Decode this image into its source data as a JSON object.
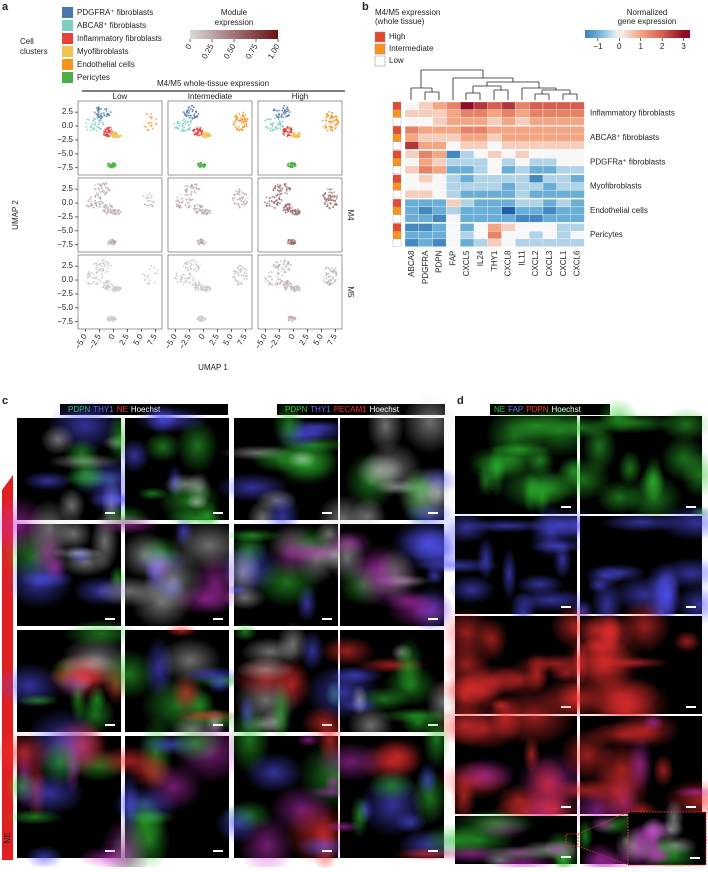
{
  "panel_labels": [
    "a",
    "b",
    "c",
    "d"
  ],
  "panel_a": {
    "cell_clusters_title": [
      "Cell",
      "clusters"
    ],
    "clusters": [
      {
        "name": "PDGFRA⁺ fibroblasts",
        "color": "#4a78b0"
      },
      {
        "name": "ABCA8⁺ fibroblasts",
        "color": "#7fcdc4"
      },
      {
        "name": "Inflammatory fibroblasts",
        "color": "#e8413c"
      },
      {
        "name": "Myofibroblasts",
        "color": "#f2c14e"
      },
      {
        "name": "Endothelial cells",
        "color": "#f7941d"
      },
      {
        "name": "Pericytes",
        "color": "#4daf4a"
      }
    ],
    "module_title": [
      "Module",
      "expression"
    ],
    "module_lim": [
      0,
      1
    ],
    "module_ticks": [
      0,
      {
        "value": 0.25,
        "label": "0.25"
      },
      {
        "value": 0.5,
        "label": "0.50"
      },
      {
        "value": 0.75,
        "label": "0.75"
      },
      {
        "value": 1,
        "label": "1.00"
      }
    ],
    "module_colors": [
      "#d9d9d9",
      "#6b1010"
    ],
    "header": "M4/M5 whole-tissue expression",
    "columns": [
      "Low",
      "Intermediate",
      "High"
    ],
    "rows": [
      "M4",
      "M5"
    ],
    "xlabel": "UMAP 1",
    "ylabel": "UMAP 2",
    "xlim": [
      -6.3,
      8.7
    ],
    "ylim": [
      -8.8,
      4.5
    ],
    "xticks": [
      {
        "value": -5,
        "label": "−5.0"
      },
      {
        "value": -2.5,
        "label": "−2.5"
      },
      0,
      2.5,
      {
        "value": 5,
        "label": "5.0"
      },
      7.5
    ],
    "yticks": [
      2.5,
      {
        "value": 0,
        "label": "0.0"
      },
      {
        "value": -2.5,
        "label": "−2.5"
      },
      {
        "value": -5,
        "label": "−5.0"
      },
      {
        "value": -7.5,
        "label": "−7.5"
      }
    ]
  },
  "panel_b": {
    "legend_title": [
      "M4/M5 expression",
      "(whole tissue)"
    ],
    "legend": [
      {
        "label": "High",
        "color": "#e34a33"
      },
      {
        "label": "Intermediate",
        "color": "#f7941d"
      },
      {
        "label": "Low",
        "color": "#ffffff"
      }
    ],
    "colorbar_title": [
      "Normalized",
      "gene expression"
    ],
    "colorbar_lim": [
      -1.6,
      3.3
    ],
    "colorbar_ticks": [
      {
        "value": -1,
        "label": "−1"
      },
      0,
      1,
      2,
      3
    ],
    "colorscale": [
      {
        "value": -2,
        "color": "#1f5fa8"
      },
      {
        "value": -1,
        "color": "#6aaed6"
      },
      {
        "value": 0,
        "color": "#f7f7f7"
      },
      {
        "value": 1,
        "color": "#f4a582"
      },
      {
        "value": 2,
        "color": "#d6604d"
      },
      {
        "value": 3,
        "color": "#8c0d25"
      }
    ],
    "genes": [
      "ABCA8",
      "PDGFRA",
      "PDPN",
      "FAP",
      "CXCL5",
      "IL24",
      "THY1",
      "CXCL8",
      "IL11",
      "CXCL2",
      "CXCL3",
      "CXCL1",
      "CXCL6"
    ],
    "groups": [
      {
        "name": "Inflammatory fibroblasts",
        "rows": [
          [
            0,
            0.5,
            1,
            1.5,
            3,
            2.5,
            2,
            2.5,
            1.5,
            2,
            2,
            2,
            2
          ],
          [
            0.5,
            0.5,
            0.5,
            1,
            1.5,
            1.5,
            1,
            1.5,
            1,
            1.5,
            1.5,
            1.5,
            1.5
          ],
          [
            0,
            0,
            0.5,
            1,
            1,
            1,
            0.5,
            1,
            0.5,
            1,
            1,
            1,
            1
          ]
        ]
      },
      {
        "name": "ABCA8⁺ fibroblasts",
        "rows": [
          [
            1.5,
            1,
            1,
            1,
            1.5,
            1.5,
            1,
            1,
            1,
            1,
            1,
            1,
            1
          ],
          [
            1,
            0.5,
            0.5,
            0.5,
            1,
            1,
            0.5,
            1,
            1,
            1,
            1,
            1,
            1
          ],
          [
            2.5,
            1,
            1,
            0,
            0.5,
            0.5,
            0,
            0.5,
            0.5,
            0.5,
            0.5,
            0.5,
            0.5
          ]
        ]
      },
      {
        "name": "PDGFRa⁺ fibroblasts",
        "rows": [
          [
            0.5,
            1.5,
            1,
            -1.5,
            -0.5,
            0,
            0.5,
            0,
            0.5,
            0,
            0,
            0,
            0
          ],
          [
            0,
            1,
            0.5,
            -0.5,
            -0.5,
            -0.5,
            0,
            -0.5,
            0,
            -0.5,
            -0.5,
            0,
            0
          ],
          [
            0.5,
            1.5,
            1,
            -1,
            -1,
            -0.5,
            0,
            -1,
            -0.5,
            -1,
            -1,
            -0.5,
            -0.5
          ]
        ]
      },
      {
        "name": "Myofibroblasts",
        "rows": [
          [
            0,
            0.5,
            0,
            -0.5,
            -1,
            -0.5,
            -0.5,
            -0.5,
            -0.5,
            -1.5,
            -0.5,
            -0.5,
            -1
          ],
          [
            0,
            0,
            0,
            -0.5,
            -0.5,
            -0.5,
            -0.5,
            -1,
            -0.5,
            -0.5,
            -1,
            -0.5,
            -0.5
          ],
          [
            0.5,
            0.5,
            0,
            -0.5,
            -1,
            -1,
            -1,
            -1,
            -0.5,
            -1,
            -1,
            -1,
            -1
          ]
        ]
      },
      {
        "name": "Endothelial cells",
        "rows": [
          [
            -1,
            -1,
            -1,
            0.5,
            -0.5,
            -1,
            -1,
            -1,
            -0.5,
            -0.5,
            -1,
            -0.5,
            -1
          ],
          [
            -1,
            -1.5,
            -1,
            -0.5,
            -1,
            -1,
            -1,
            -2,
            -1,
            -1,
            -1.5,
            -1,
            -1
          ],
          [
            -1,
            -1,
            -1.5,
            0,
            -1,
            -1,
            -1,
            -1,
            -1.5,
            -1.5,
            -1,
            -1,
            -1
          ]
        ]
      },
      {
        "name": "Pericytes",
        "rows": [
          [
            -1.5,
            -1.5,
            -1,
            0,
            -1,
            0,
            1,
            0.5,
            0,
            0,
            0,
            -0.5,
            -0.5
          ],
          [
            -1,
            -1,
            -1,
            0,
            -0.5,
            0,
            1.5,
            0,
            0,
            -0.5,
            0,
            -0.5,
            0
          ],
          [
            -1.5,
            -1,
            -1.5,
            0,
            -1,
            -0.5,
            0.5,
            0,
            -0.5,
            -0.5,
            -0.5,
            -0.5,
            -0.5
          ]
        ]
      }
    ]
  },
  "panel_c": {
    "stains": [
      [
        {
          "text": "PDPN",
          "color": "#33cc33"
        },
        {
          "text": "THY1",
          "color": "#6f6fff"
        },
        {
          "text": "NE",
          "color": "#ff3030"
        },
        {
          "text": "Hoechst",
          "color": "#ffffff"
        }
      ],
      [
        {
          "text": "PDPN",
          "color": "#33cc33"
        },
        {
          "text": "THY1",
          "color": "#6f6fff"
        },
        {
          "text": "PECAM1",
          "color": "#ff3030"
        },
        {
          "text": "Hoechst",
          "color": "#ffffff"
        }
      ]
    ],
    "gradient_label": "NE"
  },
  "panel_d": {
    "stains": [
      {
        "text": "NE",
        "color": "#33cc33"
      },
      {
        "text": "FAP",
        "color": "#6f6fff"
      },
      {
        "text": "PDPN",
        "color": "#ff3030"
      },
      {
        "text": "Hoechst",
        "color": "#ffffff"
      }
    ]
  }
}
